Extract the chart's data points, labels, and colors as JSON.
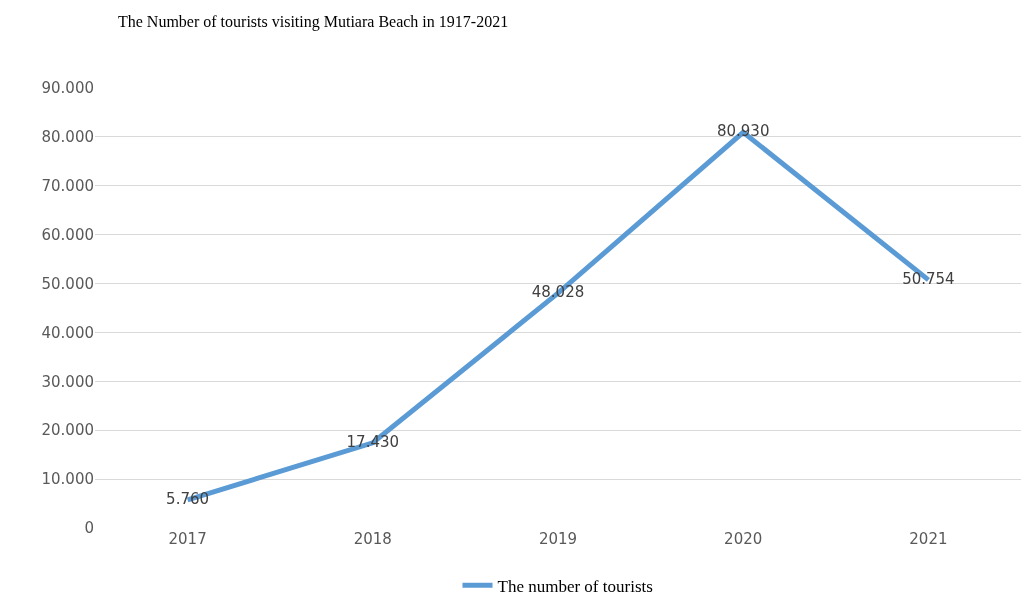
{
  "chart_data": {
    "type": "line",
    "title": "The Number of tourists visiting Mutiara Beach in 1917-2021",
    "categories": [
      "2017",
      "2018",
      "2019",
      "2020",
      "2021"
    ],
    "series": [
      {
        "name": "The number of tourists",
        "color": "#5b9bd5",
        "values": [
          5760,
          17430,
          48028,
          80930,
          50754
        ],
        "value_labels": [
          "5.760",
          "17.430",
          "48.028",
          "80.930",
          "50.754"
        ]
      }
    ],
    "ylim": [
      0,
      90000
    ],
    "yticks": [
      0,
      {
        "value": 10000,
        "label": "10.000"
      },
      {
        "value": 20000,
        "label": "20.000"
      },
      {
        "value": 30000,
        "label": "30.000"
      },
      {
        "value": 40000,
        "label": "40.000"
      },
      {
        "value": 50000,
        "label": "50.000"
      },
      {
        "value": 60000,
        "label": "60.000"
      },
      {
        "value": 70000,
        "label": "70.000"
      },
      {
        "value": 80000,
        "label": "80.000"
      },
      {
        "value": 90000,
        "label": "90.000"
      }
    ],
    "grid": "y",
    "legend": "bottom",
    "marker": "none",
    "line_style": "solid"
  }
}
